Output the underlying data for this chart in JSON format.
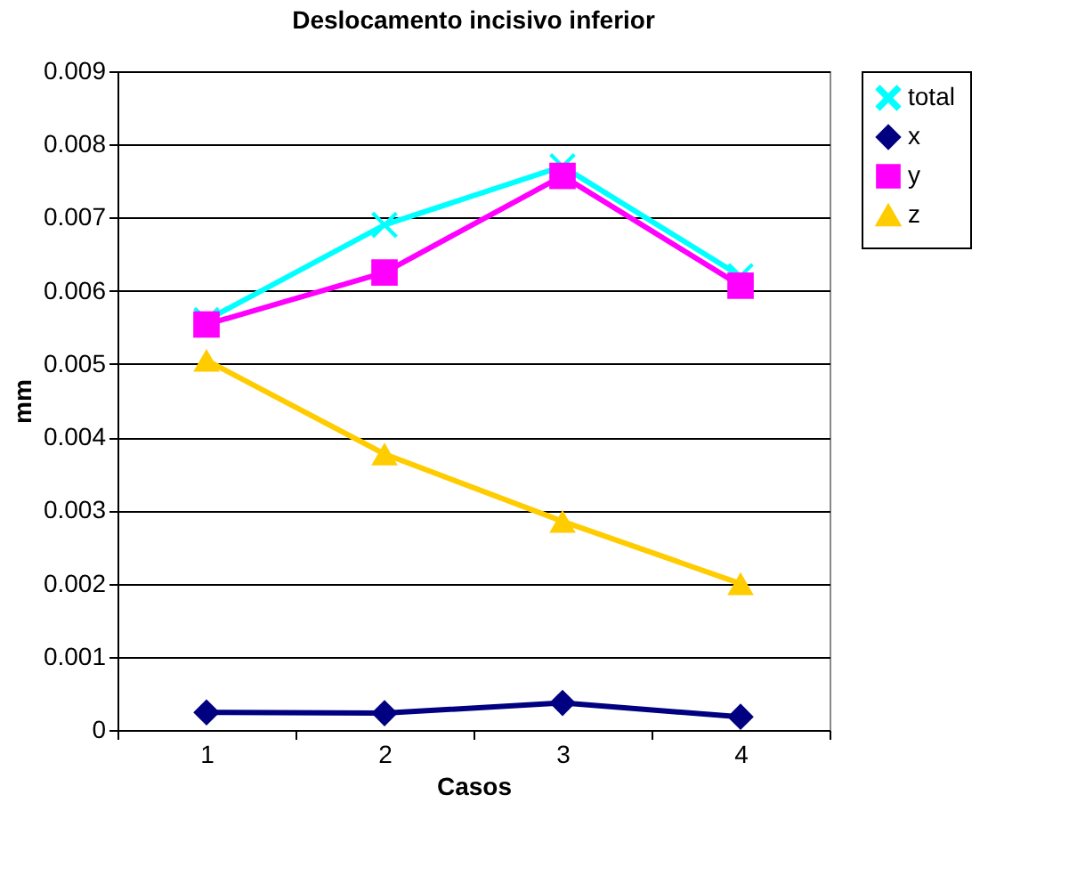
{
  "chart_data": {
    "type": "line",
    "title": "Deslocamento incisivo inferior",
    "xlabel": "Casos",
    "ylabel": "mm",
    "categories": [
      "1",
      "2",
      "3",
      "4"
    ],
    "ylim": [
      0,
      0.009
    ],
    "yticks": [
      0,
      0.001,
      0.002,
      0.003,
      0.004,
      0.005,
      0.006,
      0.007,
      0.008,
      0.009
    ],
    "grid": "y",
    "legend": "right",
    "series": [
      {
        "name": "total",
        "color": "#00ffff",
        "marker": "cross",
        "values": [
          0.0056,
          0.0069,
          0.0077,
          0.0062
        ]
      },
      {
        "name": "x",
        "color": "#000080",
        "marker": "diamond",
        "values": [
          0.00024,
          0.00023,
          0.00037,
          0.00018
        ]
      },
      {
        "name": "y",
        "color": "#ff00ff",
        "marker": "square",
        "values": [
          0.00554,
          0.00625,
          0.00757,
          0.00607
        ]
      },
      {
        "name": "z",
        "color": "#ffcc00",
        "marker": "triangle",
        "values": [
          0.00505,
          0.00377,
          0.00285,
          0.002
        ]
      }
    ]
  }
}
